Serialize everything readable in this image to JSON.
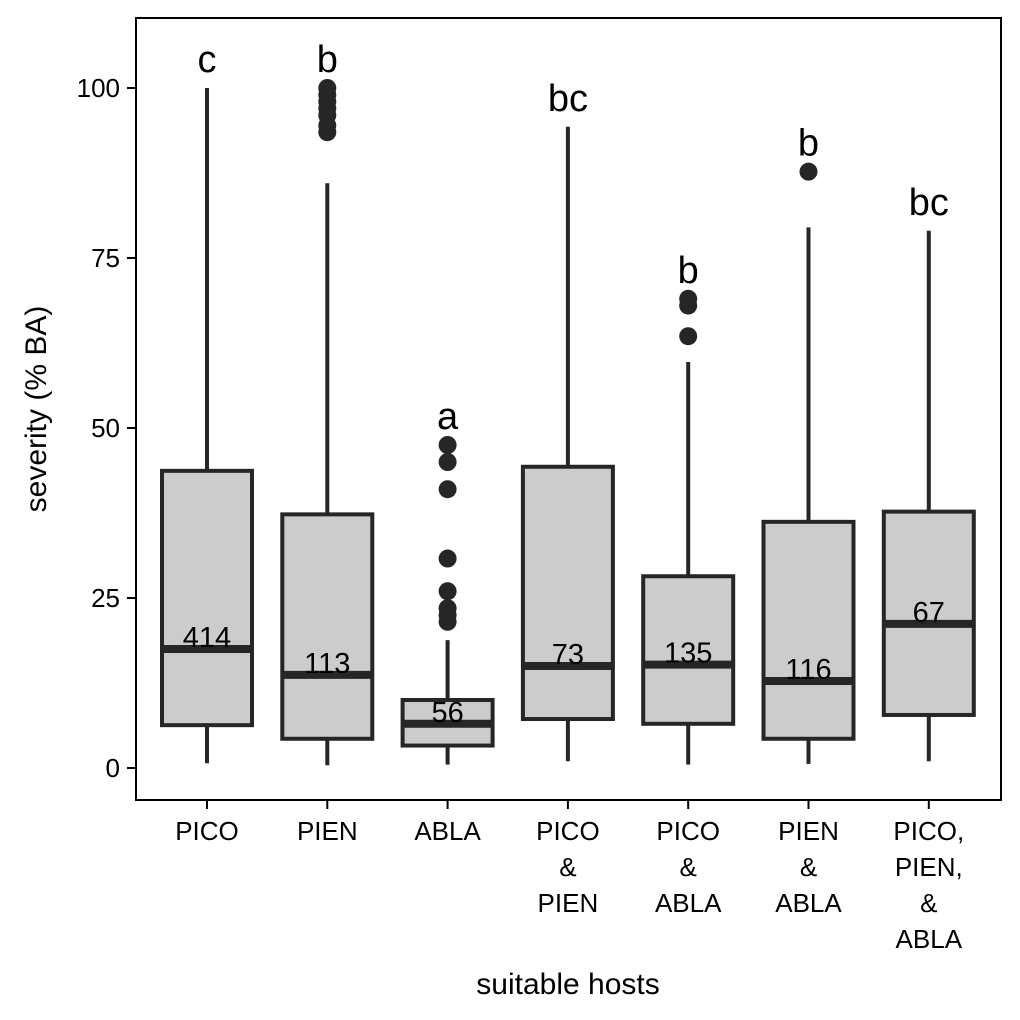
{
  "chart_data": {
    "type": "box",
    "xlabel": "suitable hosts",
    "ylabel": "severity (% BA)",
    "ylim": [
      -5,
      110
    ],
    "yticks": [
      0,
      25,
      50,
      75,
      100
    ],
    "grid": false,
    "box_fill": "#cccccc",
    "line_color": "#262626",
    "categories": [
      {
        "lines": [
          "PICO"
        ],
        "min": 0.7,
        "q1": 6.3,
        "median": 17.5,
        "q3": 43.7,
        "max": 100.0,
        "n": "414",
        "letter": "c",
        "outliers": []
      },
      {
        "lines": [
          "PIEN"
        ],
        "min": 0.4,
        "q1": 4.3,
        "median": 13.7,
        "q3": 37.3,
        "max": 86.0,
        "n": "113",
        "letter": "b",
        "outliers": [
          93.5,
          94.5,
          96.0,
          97.0,
          98.0,
          99.0,
          100.0
        ]
      },
      {
        "lines": [
          "ABLA"
        ],
        "min": 0.5,
        "q1": 3.3,
        "median": 6.5,
        "q3": 10.0,
        "max": 18.8,
        "n": "56",
        "letter": "a",
        "outliers": [
          21.5,
          22.5,
          23.5,
          26.0,
          30.8,
          41.0,
          45.0,
          47.5
        ]
      },
      {
        "lines": [
          "PICO",
          "&",
          "PIEN"
        ],
        "min": 1.0,
        "q1": 7.2,
        "median": 15.0,
        "q3": 44.3,
        "max": 94.3,
        "n": "73",
        "letter": "bc",
        "outliers": []
      },
      {
        "lines": [
          "PICO",
          "&",
          "ABLA"
        ],
        "min": 0.5,
        "q1": 6.5,
        "median": 15.2,
        "q3": 28.2,
        "max": 59.7,
        "n": "135",
        "letter": "b",
        "outliers": [
          63.5,
          68.0,
          69.0
        ]
      },
      {
        "lines": [
          "PIEN",
          "&",
          "ABLA"
        ],
        "min": 0.6,
        "q1": 4.3,
        "median": 12.8,
        "q3": 36.2,
        "max": 79.5,
        "n": "116",
        "letter": "b",
        "outliers": [
          87.7
        ]
      },
      {
        "lines": [
          "PICO,",
          "PIEN,",
          "&",
          "ABLA"
        ],
        "min": 1.0,
        "q1": 7.8,
        "median": 21.2,
        "q3": 37.7,
        "max": 79.0,
        "n": "67",
        "letter": "bc",
        "outliers": []
      }
    ]
  }
}
